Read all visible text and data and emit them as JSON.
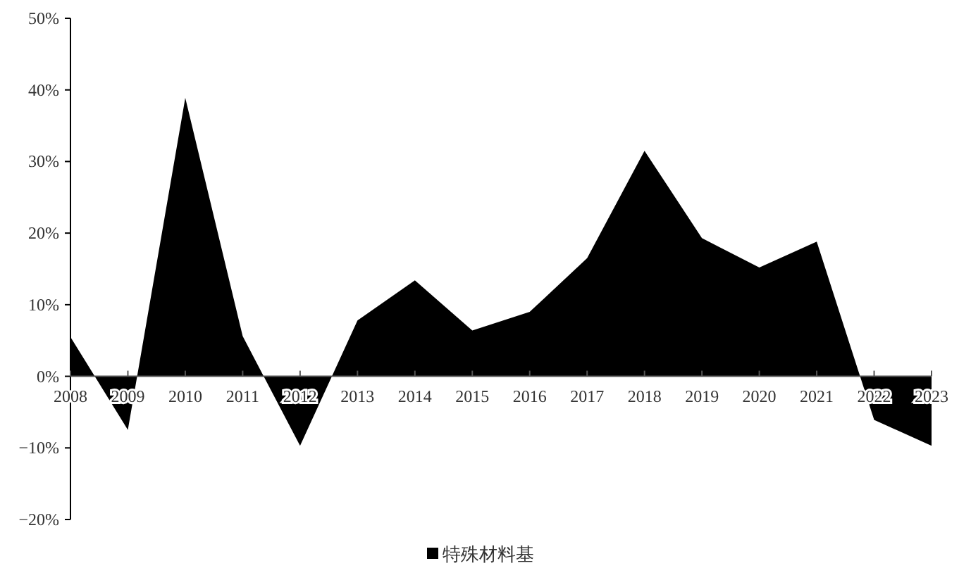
{
  "chart_data": {
    "type": "area",
    "categories": [
      "2008",
      "2009",
      "2010",
      "2011",
      "2012",
      "2013",
      "2014",
      "2015",
      "2016",
      "2017",
      "2018",
      "2019",
      "2020",
      "2021",
      "2022",
      "2023"
    ],
    "series": [
      {
        "name": "特殊材料基",
        "color": "#000000",
        "values": [
          5.5,
          -7.5,
          38.9,
          5.6,
          -9.7,
          7.8,
          13.4,
          6.4,
          9.0,
          16.5,
          31.5,
          19.3,
          15.2,
          18.8,
          -6.1,
          -9.7
        ]
      }
    ],
    "ylim": [
      -20,
      50
    ],
    "yticks": [
      {
        "value": -20,
        "label": "−20%"
      },
      {
        "value": -10,
        "label": "−10%"
      },
      {
        "value": 0,
        "label": "0%"
      },
      {
        "value": 10,
        "label": "10%"
      },
      {
        "value": 20,
        "label": "20%"
      },
      {
        "value": 30,
        "label": "30%"
      },
      {
        "value": 40,
        "label": "40%"
      },
      {
        "value": 50,
        "label": "50%"
      }
    ],
    "grid": false,
    "legend": "bottom"
  }
}
